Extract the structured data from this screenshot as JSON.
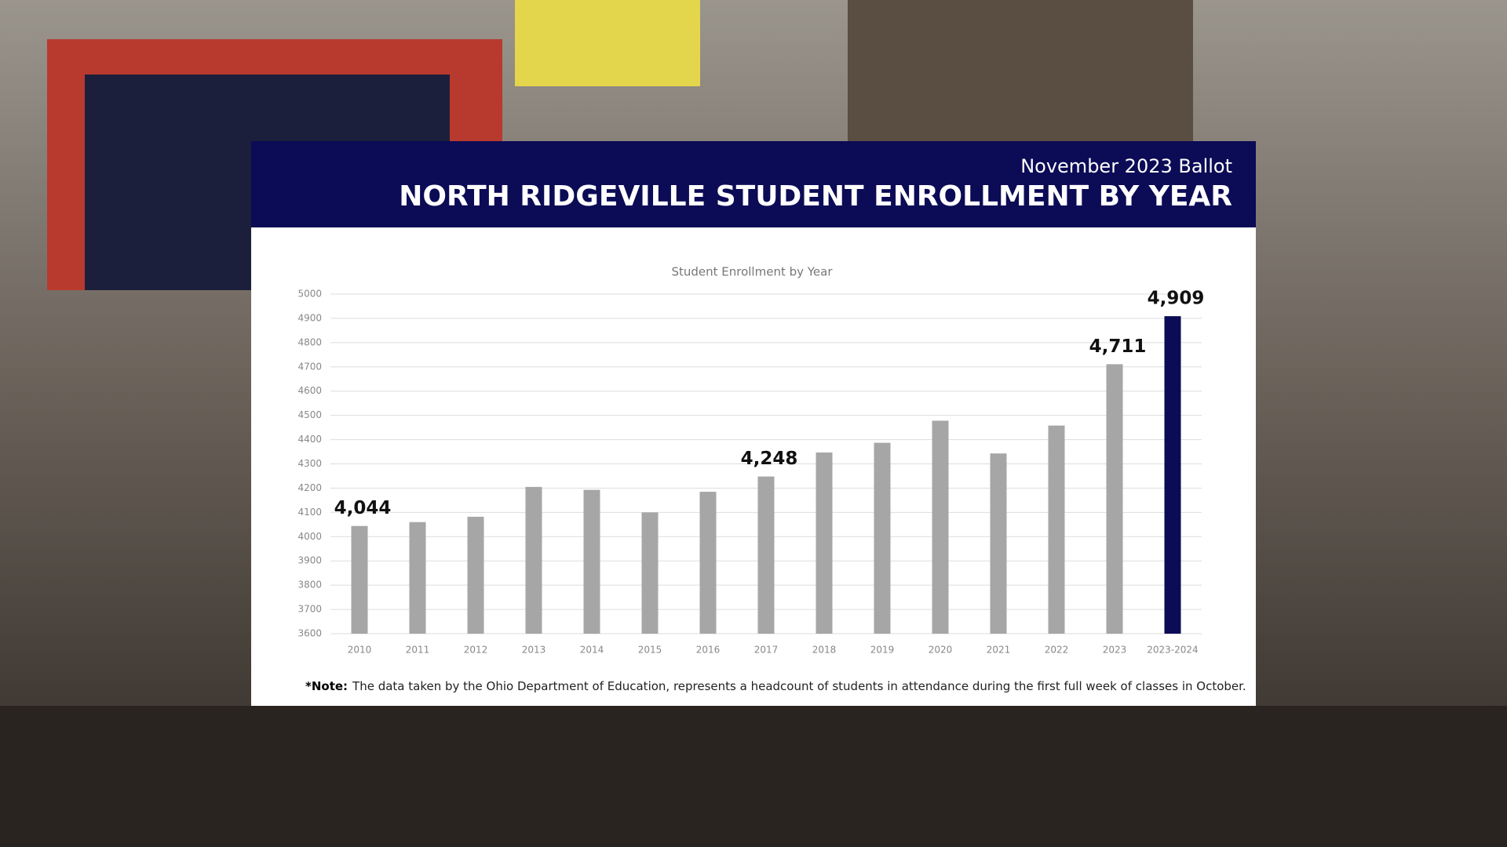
{
  "header": {
    "subtitle": "November 2023 Ballot",
    "title": "NORTH RIDGEVILLE STUDENT ENROLLMENT BY YEAR"
  },
  "chart_data": {
    "type": "bar",
    "title": "Student Enrollment by Year",
    "categories": [
      "2010",
      "2011",
      "2012",
      "2013",
      "2014",
      "2015",
      "2016",
      "2017",
      "2018",
      "2019",
      "2020",
      "2021",
      "2022",
      "2023",
      "2023-2024"
    ],
    "values": [
      4044,
      4060,
      4082,
      4205,
      4193,
      4100,
      4185,
      4248,
      4347,
      4387,
      4478,
      4343,
      4458,
      4711,
      4909
    ],
    "value_labels": [
      "4,044",
      null,
      null,
      null,
      null,
      null,
      null,
      "4,248",
      null,
      null,
      null,
      null,
      null,
      "4,711",
      "4,909"
    ],
    "colors": [
      "#a6a6a6",
      "#a6a6a6",
      "#a6a6a6",
      "#a6a6a6",
      "#a6a6a6",
      "#a6a6a6",
      "#a6a6a6",
      "#a6a6a6",
      "#a6a6a6",
      "#a6a6a6",
      "#a6a6a6",
      "#a6a6a6",
      "#a6a6a6",
      "#a6a6a6",
      "#0b0b56"
    ],
    "ylim": [
      3600,
      5000
    ],
    "yticks": [
      3600,
      3700,
      3800,
      3900,
      4000,
      4100,
      4200,
      4300,
      4400,
      4500,
      4600,
      4700,
      4800,
      4900,
      5000
    ],
    "grid": true
  },
  "note": {
    "label": "*Note:",
    "text": "The data  taken by the Ohio Department of Education, represents a headcount of students in attendance during the first full week of classes in October."
  }
}
